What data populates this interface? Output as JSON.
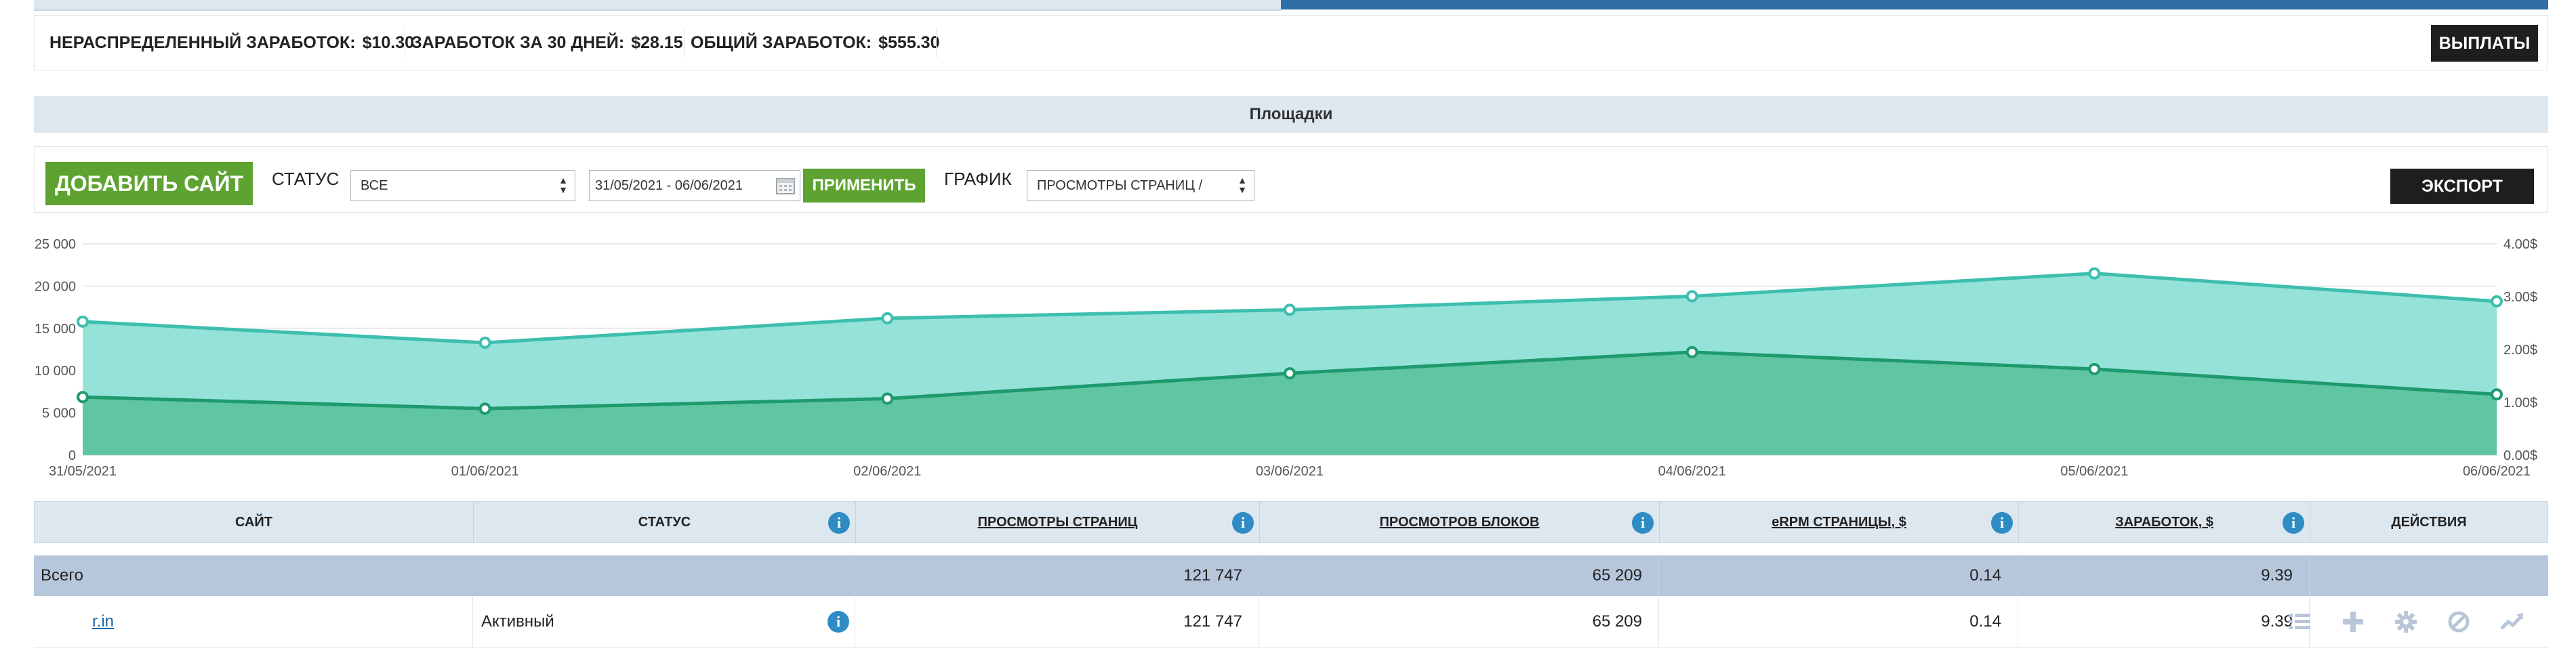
{
  "earnings": {
    "undistributed": {
      "label": "НЕРАСПРЕДЕЛЕННЫЙ ЗАРАБОТОК:",
      "value": "$10.30"
    },
    "last30": {
      "label": "ЗАРАБОТОК ЗА 30 ДНЕЙ:",
      "value": "$28.15"
    },
    "total": {
      "label": "ОБЩИЙ ЗАРАБОТОК:",
      "value": "$555.30"
    },
    "payouts_label": "ВЫПЛАТЫ"
  },
  "section_title": "Площадки",
  "toolbar": {
    "add_site_label": "ДОБАВИТЬ САЙТ",
    "status_label": "СТАТУС",
    "status_value": "ВСЕ",
    "date_range": "31/05/2021 - 06/06/2021",
    "apply_label": "ПРИМЕНИТЬ",
    "chart_label": "ГРАФИК",
    "chart_select_value": "ПРОСМОТРЫ СТРАНИЦ /",
    "export_label": "ЭКСПОРТ"
  },
  "chart_data": {
    "type": "area",
    "x": [
      "31/05/2021",
      "01/06/2021",
      "02/06/2021",
      "03/06/2021",
      "04/06/2021",
      "05/06/2021",
      "06/06/2021"
    ],
    "series": [
      {
        "axis": "left",
        "color": "#8fe0d6",
        "line": "#3ebfae",
        "values": [
          15800,
          13300,
          16200,
          17200,
          18800,
          21500,
          18200
        ]
      },
      {
        "axis": "right",
        "color": "#5cc49e",
        "line": "#1e9a6e",
        "values": [
          1.1,
          0.88,
          1.07,
          1.55,
          1.95,
          1.63,
          1.15
        ]
      }
    ],
    "left_axis": {
      "min": 0,
      "max": 25000,
      "ticks": [
        "0",
        "5 000",
        "10 000",
        "15 000",
        "20 000",
        "25 000"
      ]
    },
    "right_axis": {
      "min": 0,
      "max": 4,
      "ticks": [
        "0.00$",
        "1.00$",
        "2.00$",
        "3.00$",
        "4.00$"
      ]
    },
    "grid": true
  },
  "table": {
    "headers": [
      "САЙТ",
      "СТАТУС",
      "ПРОСМОТРЫ СТРАНИЦ",
      "ПРОСМОТРОВ БЛОКОВ",
      "eRPM СТРАНИЦЫ, $",
      "ЗАРАБОТОК, $",
      "ДЕЙСТВИЯ"
    ],
    "total": {
      "label": "Всего",
      "pageviews": "121 747",
      "blockviews": "65 209",
      "erpm": "0.14",
      "earnings": "9.39"
    },
    "rows": [
      {
        "site": "r.in",
        "status": "Активный",
        "pageviews": "121 747",
        "blockviews": "65 209",
        "erpm": "0.14",
        "earnings": "9.39"
      }
    ],
    "action_icons": [
      "list-icon",
      "plus-icon",
      "gear-icon",
      "block-icon",
      "trend-icon"
    ]
  }
}
